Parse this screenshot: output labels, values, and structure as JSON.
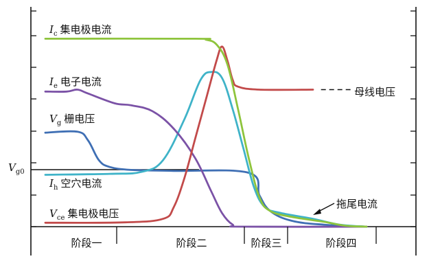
{
  "chart_data": {
    "type": "line",
    "title": "",
    "xlabel": "",
    "ylabel": "",
    "phases": [
      "阶段一",
      "阶段二",
      "阶段三",
      "阶段四"
    ],
    "y_reference_label": {
      "main": "V",
      "sub": "g0"
    },
    "bus_voltage_label": "母线电压",
    "tail_current_label": "拖尾电流",
    "series": [
      {
        "id": "ic",
        "color": "#8ec43c",
        "label_main": "I",
        "label_sub": "c",
        "label_text": "集电极电流",
        "points": [
          [
            0,
            9.6
          ],
          [
            2.8,
            9.6
          ],
          [
            3.0,
            9.55
          ],
          [
            3.2,
            9.3
          ],
          [
            3.4,
            8.3
          ],
          [
            3.6,
            6.0
          ],
          [
            3.8,
            3.5
          ],
          [
            4.0,
            1.5
          ],
          [
            4.2,
            0.8
          ],
          [
            4.6,
            0.5
          ],
          [
            5.2,
            0.25
          ],
          [
            5.6,
            0.05
          ],
          [
            6.0,
            0
          ]
        ]
      },
      {
        "id": "ie",
        "color": "#7b52a6",
        "label_main": "I",
        "label_sub": "e",
        "label_text": "电子电流",
        "points": [
          [
            0,
            6.9
          ],
          [
            0.4,
            6.9
          ],
          [
            0.6,
            7.0
          ],
          [
            0.8,
            6.8
          ],
          [
            1.3,
            6.3
          ],
          [
            1.6,
            6.2
          ],
          [
            2.0,
            5.9
          ],
          [
            2.4,
            5.0
          ],
          [
            2.8,
            3.5
          ],
          [
            3.1,
            1.8
          ],
          [
            3.3,
            0.7
          ],
          [
            3.5,
            0.1
          ],
          [
            3.7,
            0
          ],
          [
            6.0,
            0
          ]
        ]
      },
      {
        "id": "vg",
        "color": "#3f6fb4",
        "label_main": "V",
        "label_sub": "g",
        "label_text": "栅电压",
        "points": [
          [
            0,
            4.8
          ],
          [
            0.6,
            4.85
          ],
          [
            0.8,
            4.4
          ],
          [
            1.0,
            3.4
          ],
          [
            1.2,
            3.05
          ],
          [
            1.6,
            2.9
          ],
          [
            2.4,
            2.85
          ],
          [
            3.8,
            2.75
          ],
          [
            4.0,
            1.6
          ],
          [
            4.2,
            0.8
          ],
          [
            4.6,
            0.3
          ],
          [
            5.2,
            0.1
          ],
          [
            6.0,
            0
          ]
        ]
      },
      {
        "id": "ih",
        "color": "#3fb3c8",
        "label_main": "I",
        "label_sub": "h",
        "label_text": "空穴电流",
        "points": [
          [
            0,
            2.65
          ],
          [
            1.2,
            2.7
          ],
          [
            1.8,
            2.8
          ],
          [
            2.2,
            3.4
          ],
          [
            2.6,
            5.5
          ],
          [
            2.9,
            7.5
          ],
          [
            3.1,
            7.9
          ],
          [
            3.3,
            7.6
          ],
          [
            3.5,
            6.0
          ],
          [
            3.7,
            4.0
          ],
          [
            3.9,
            2.0
          ],
          [
            4.1,
            1.0
          ],
          [
            4.4,
            0.7
          ],
          [
            5.0,
            0.4
          ],
          [
            5.5,
            0.1
          ],
          [
            6.0,
            0
          ]
        ]
      },
      {
        "id": "vce",
        "color": "#c24a4a",
        "label_main": "V",
        "label_sub": "ce",
        "label_text": "集电极电压",
        "points": [
          [
            0,
            0.2
          ],
          [
            1.5,
            0.22
          ],
          [
            2.2,
            0.4
          ],
          [
            2.4,
            1.0
          ],
          [
            2.6,
            2.5
          ],
          [
            2.8,
            4.5
          ],
          [
            3.0,
            6.5
          ],
          [
            3.2,
            8.5
          ],
          [
            3.3,
            9.2
          ],
          [
            3.4,
            8.5
          ],
          [
            3.5,
            7.5
          ],
          [
            3.6,
            7.15
          ],
          [
            4.0,
            7.0
          ],
          [
            5.0,
            7.0
          ]
        ],
        "dash_extension": [
          [
            5.15,
            7.0
          ],
          [
            5.7,
            7.0
          ]
        ]
      }
    ]
  }
}
